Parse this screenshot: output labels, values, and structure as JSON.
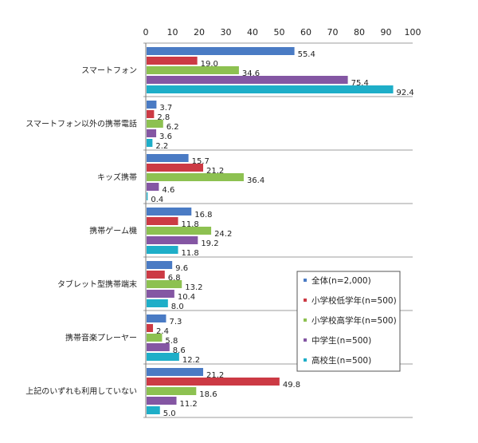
{
  "chart_data": {
    "type": "bar",
    "orientation": "horizontal",
    "title": "",
    "xlabel": "",
    "ylabel": "",
    "xlim": [
      0,
      100
    ],
    "xticks": [
      0,
      10,
      20,
      30,
      40,
      50,
      60,
      70,
      80,
      90,
      100
    ],
    "grid": false,
    "legend_position": "bottom-right",
    "categories": [
      "スマートフォン",
      "スマートフォン以外の携帯電話",
      "キッズ携帯",
      "携帯ゲーム機",
      "タブレット型携帯端末",
      "携帯音楽プレーヤー",
      "上記のいずれも利用していない"
    ],
    "series": [
      {
        "name": "全体(n=2,000)",
        "color": "#4a7bc4",
        "values": [
          55.4,
          3.7,
          15.7,
          16.8,
          9.6,
          7.3,
          21.2
        ]
      },
      {
        "name": "小学校低学年(n=500)",
        "color": "#cc3a44",
        "values": [
          19.0,
          2.8,
          21.2,
          11.8,
          6.8,
          2.4,
          49.8
        ]
      },
      {
        "name": "小学校高学年(n=500)",
        "color": "#8dc151",
        "values": [
          34.6,
          6.2,
          36.4,
          24.2,
          13.2,
          5.8,
          18.6
        ]
      },
      {
        "name": "中学生(n=500)",
        "color": "#8456a3",
        "values": [
          75.4,
          3.6,
          4.6,
          19.2,
          10.4,
          8.6,
          11.2
        ]
      },
      {
        "name": "高校生(n=500)",
        "color": "#1eaec8",
        "values": [
          92.4,
          2.2,
          0.4,
          11.8,
          8.0,
          12.2,
          5.0
        ]
      }
    ]
  }
}
